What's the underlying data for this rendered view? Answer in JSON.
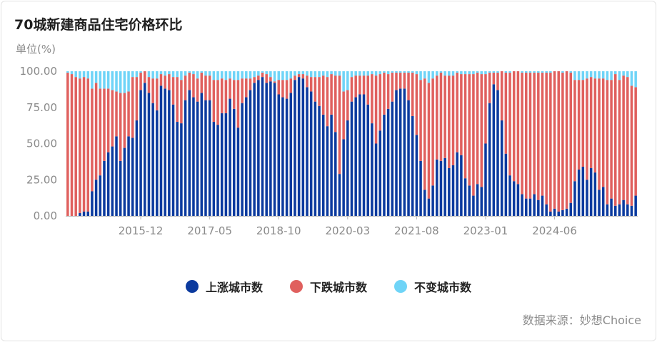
{
  "title": "70城新建商品住宅价格环比",
  "unit_label": "单位(%)",
  "source": "数据来源：妙想Choice",
  "colors": {
    "up": "#0b3a9e",
    "down": "#e0605e",
    "flat": "#6fd4f7",
    "axis": "#b8b8b8",
    "tick": "#8a8a8a"
  },
  "legend": [
    {
      "key": "up",
      "label": "上涨城市数"
    },
    {
      "key": "down",
      "label": "下跌城市数"
    },
    {
      "key": "flat",
      "label": "不变城市数"
    }
  ],
  "chart_data": {
    "type": "bar",
    "stacked": true,
    "title": "70城新建商品住宅价格环比",
    "ylabel": "单位(%)",
    "ylim": [
      0,
      100
    ],
    "y_ticks": [
      "0.00",
      "25.00",
      "50.00",
      "75.00",
      "100.00"
    ],
    "x_tick_labels": [
      {
        "index": 18,
        "label": "2015-12"
      },
      {
        "index": 35,
        "label": "2017-05"
      },
      {
        "index": 52,
        "label": "2018-10"
      },
      {
        "index": 69,
        "label": "2020-03"
      },
      {
        "index": 86,
        "label": "2021-08"
      },
      {
        "index": 103,
        "label": "2023-01"
      },
      {
        "index": 120,
        "label": "2024-06"
      }
    ],
    "series": [
      {
        "name": "上涨城市数",
        "key": "up",
        "values": [
          0,
          0,
          0,
          2,
          3,
          3,
          17,
          25,
          28,
          38,
          44,
          48,
          55,
          38,
          47,
          55,
          54,
          66,
          87,
          92,
          85,
          78,
          73,
          90,
          88,
          87,
          77,
          65,
          64,
          80,
          87,
          82,
          79,
          85,
          80,
          80,
          65,
          63,
          71,
          71,
          81,
          74,
          61,
          78,
          82,
          87,
          92,
          94,
          96,
          92,
          93,
          92,
          84,
          82,
          81,
          85,
          94,
          96,
          95,
          89,
          86,
          79,
          76,
          70,
          62,
          70,
          58,
          29,
          53,
          66,
          79,
          82,
          84,
          84,
          77,
          64,
          50,
          59,
          70,
          74,
          79,
          87,
          88,
          88,
          80,
          69,
          56,
          38,
          18,
          12,
          21,
          39,
          38,
          40,
          33,
          35,
          44,
          42,
          26,
          21,
          14,
          22,
          20,
          50,
          78,
          91,
          87,
          66,
          43,
          28,
          24,
          22,
          15,
          12,
          12,
          15,
          11,
          14,
          8,
          3,
          5,
          3,
          4,
          5,
          9,
          24,
          32,
          34,
          25,
          33,
          30,
          18,
          20,
          8,
          12,
          7,
          8,
          11,
          8,
          7,
          14
        ]
      },
      {
        "name": "下跌城市数",
        "key": "down",
        "values": [
          99,
          98,
          96,
          93,
          93,
          92,
          71,
          67,
          60,
          50,
          44,
          39,
          31,
          47,
          38,
          31,
          42,
          30,
          12,
          8,
          11,
          17,
          22,
          8,
          9,
          11,
          19,
          31,
          30,
          17,
          12,
          16,
          16,
          14,
          17,
          17,
          29,
          31,
          24,
          23,
          14,
          20,
          33,
          17,
          13,
          8,
          4,
          3,
          3,
          6,
          3,
          1,
          10,
          12,
          13,
          10,
          3,
          2,
          3,
          8,
          10,
          17,
          20,
          27,
          34,
          28,
          39,
          68,
          33,
          21,
          17,
          15,
          13,
          13,
          20,
          34,
          47,
          39,
          29,
          24,
          20,
          12,
          11,
          11,
          19,
          30,
          42,
          56,
          77,
          80,
          74,
          58,
          61,
          57,
          64,
          62,
          55,
          56,
          72,
          77,
          84,
          77,
          78,
          48,
          21,
          8,
          12,
          34,
          56,
          71,
          76,
          78,
          84,
          87,
          87,
          84,
          88,
          85,
          91,
          96,
          95,
          97,
          95,
          95,
          90,
          70,
          62,
          60,
          70,
          63,
          65,
          77,
          75,
          86,
          82,
          91,
          86,
          86,
          88,
          83,
          75
        ]
      }
    ],
    "remainder_series": {
      "name": "不变城市数",
      "key": "flat",
      "total": 100
    }
  }
}
